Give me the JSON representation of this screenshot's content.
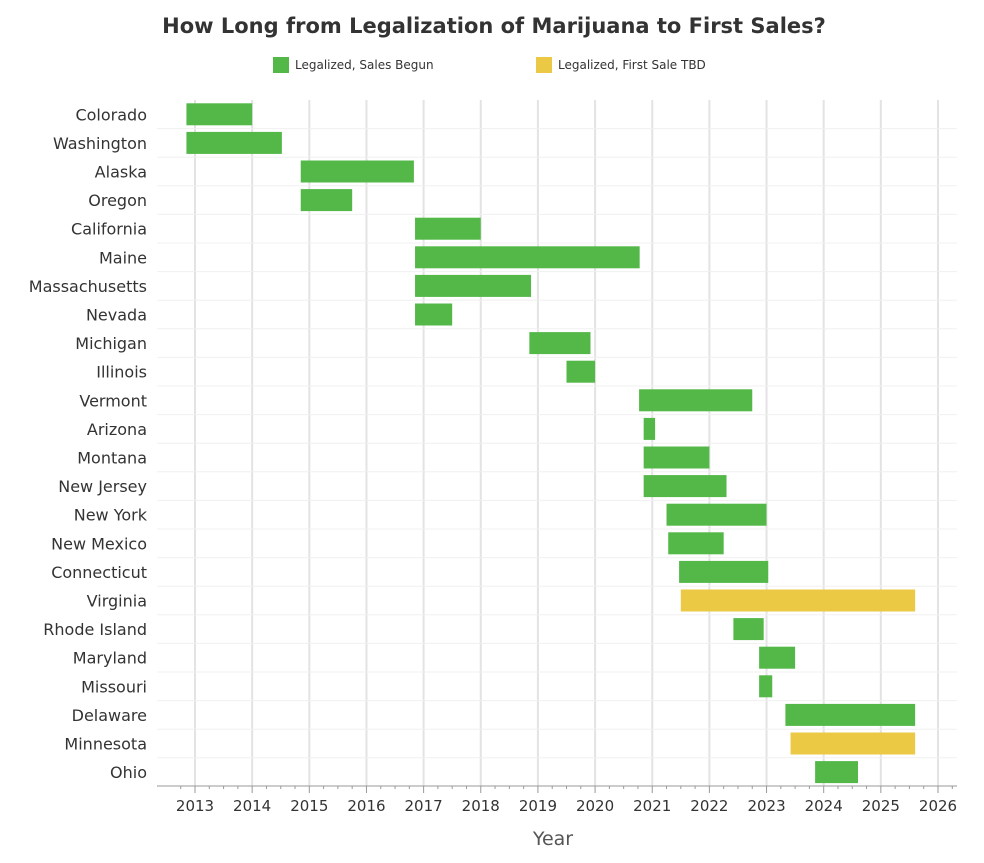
{
  "chart_data": {
    "type": "bar",
    "orientation": "horizontal-range",
    "title": "How Long from Legalization of Marijuana to First Sales?",
    "xlabel": "Year",
    "ylabel": "",
    "xlim": [
      2012.75,
      2026.3
    ],
    "x_ticks": [
      2013,
      2014,
      2015,
      2016,
      2017,
      2018,
      2019,
      2020,
      2021,
      2022,
      2023,
      2024,
      2025,
      2026
    ],
    "grid": true,
    "legend_position": "top",
    "legend": [
      {
        "key": "begun",
        "label": "Legalized, Sales Begun",
        "color": "#53b848"
      },
      {
        "key": "tbd",
        "label": "Legalized, First Sale TBD",
        "color": "#ebc944"
      }
    ],
    "rows": [
      {
        "state": "Colorado",
        "start": 2012.85,
        "end": 2014.0,
        "status": "begun"
      },
      {
        "state": "Washington",
        "start": 2012.85,
        "end": 2014.52,
        "status": "begun"
      },
      {
        "state": "Alaska",
        "start": 2014.85,
        "end": 2016.83,
        "status": "begun"
      },
      {
        "state": "Oregon",
        "start": 2014.85,
        "end": 2015.75,
        "status": "begun"
      },
      {
        "state": "California",
        "start": 2016.85,
        "end": 2018.0,
        "status": "begun"
      },
      {
        "state": "Maine",
        "start": 2016.85,
        "end": 2020.78,
        "status": "begun"
      },
      {
        "state": "Massachusetts",
        "start": 2016.85,
        "end": 2018.88,
        "status": "begun"
      },
      {
        "state": "Nevada",
        "start": 2016.85,
        "end": 2017.5,
        "status": "begun"
      },
      {
        "state": "Michigan",
        "start": 2018.85,
        "end": 2019.92,
        "status": "begun"
      },
      {
        "state": "Illinois",
        "start": 2019.5,
        "end": 2020.0,
        "status": "begun"
      },
      {
        "state": "Vermont",
        "start": 2020.77,
        "end": 2022.75,
        "status": "begun"
      },
      {
        "state": "Arizona",
        "start": 2020.85,
        "end": 2021.05,
        "status": "begun"
      },
      {
        "state": "Montana",
        "start": 2020.85,
        "end": 2022.0,
        "status": "begun"
      },
      {
        "state": "New Jersey",
        "start": 2020.85,
        "end": 2022.3,
        "status": "begun"
      },
      {
        "state": "New York",
        "start": 2021.25,
        "end": 2023.0,
        "status": "begun"
      },
      {
        "state": "New Mexico",
        "start": 2021.28,
        "end": 2022.25,
        "status": "begun"
      },
      {
        "state": "Connecticut",
        "start": 2021.47,
        "end": 2023.03,
        "status": "begun"
      },
      {
        "state": "Virginia",
        "start": 2021.5,
        "end": 2025.6,
        "status": "tbd"
      },
      {
        "state": "Rhode Island",
        "start": 2022.42,
        "end": 2022.95,
        "status": "begun"
      },
      {
        "state": "Maryland",
        "start": 2022.87,
        "end": 2023.5,
        "status": "begun"
      },
      {
        "state": "Missouri",
        "start": 2022.87,
        "end": 2023.1,
        "status": "begun"
      },
      {
        "state": "Delaware",
        "start": 2023.33,
        "end": 2025.6,
        "status": "begun"
      },
      {
        "state": "Minnesota",
        "start": 2023.42,
        "end": 2025.6,
        "status": "tbd"
      },
      {
        "state": "Ohio",
        "start": 2023.85,
        "end": 2024.6,
        "status": "begun"
      }
    ]
  }
}
